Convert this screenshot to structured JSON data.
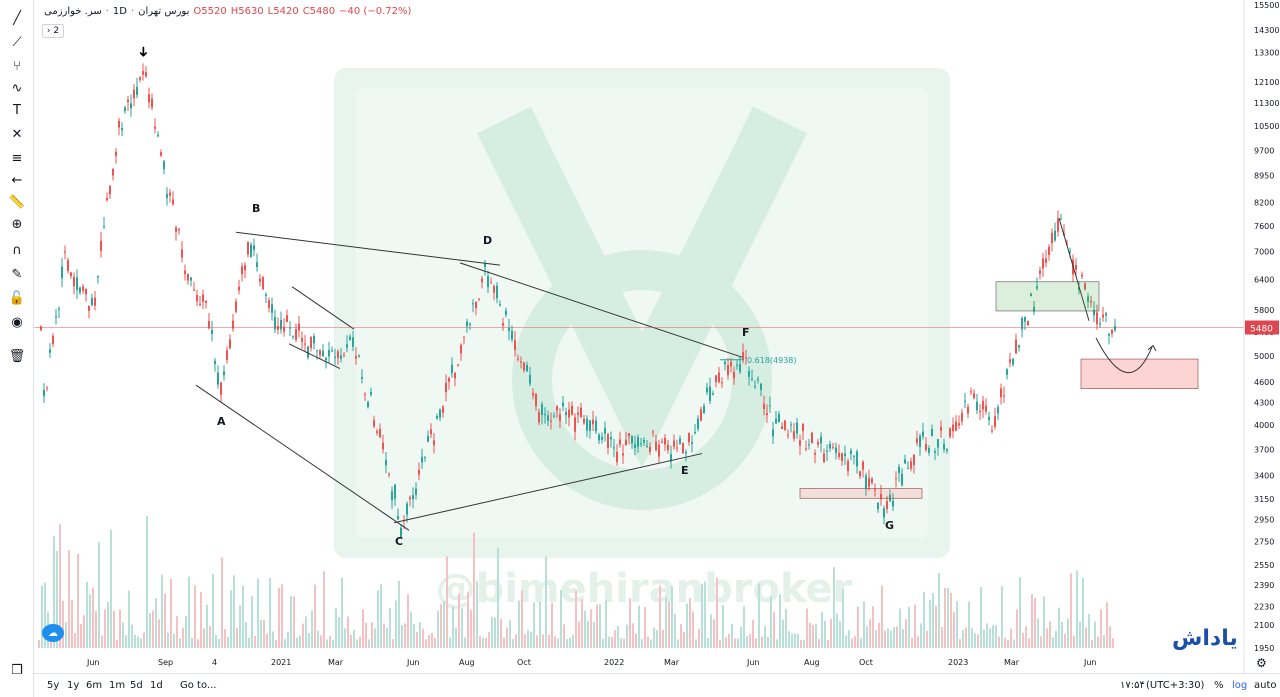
{
  "legend": {
    "symbol": "سر. خوارزمی",
    "interval": "1D",
    "exchange": "بورس تهران",
    "open": "O5520",
    "high": "H5630",
    "low": "L5420",
    "close": "C5480",
    "change": "−40 (−0.72%)",
    "indicator_count": "2"
  },
  "price_tag": "5480",
  "fib_label": "0.618(4938)",
  "watermark": "@bimehiranbroker",
  "logo_text": "یاداش",
  "timezone": "(UTC+3:30)",
  "clock": "۱۷:۵۴",
  "ranges": [
    "5y",
    "1y",
    "6m",
    "1m",
    "5d",
    "1d"
  ],
  "goto": "Go to...",
  "controls": {
    "percent": "%",
    "log": "log",
    "auto": "auto"
  },
  "colors": {
    "up": "#26a69a",
    "down": "#ef5350",
    "price_line": "#e0464f",
    "accent": "#2962ff"
  },
  "toolbar_icons": [
    "cross-line-icon",
    "trend-line-icon",
    "fork-icon",
    "brush-icon",
    "text-icon",
    "pattern-icon",
    "fib-icon",
    "back-arrow-icon",
    "ruler-icon",
    "zoom-icon",
    "magnet-icon",
    "lock-draw-icon",
    "lock-icon",
    "eye-icon",
    "trash-icon",
    "layers-icon"
  ],
  "chart_data": {
    "type": "candlestick",
    "y_axis_ticks": [
      1950,
      2100,
      2230,
      2390,
      2550,
      2750,
      2950,
      3150,
      3400,
      3700,
      4000,
      4300,
      4600,
      5000,
      5400,
      5800,
      6400,
      7000,
      7600,
      8200,
      8950,
      9700,
      10500,
      11300,
      12100,
      13300,
      14300,
      15500
    ],
    "y_scale": "log",
    "x_axis_labels": [
      "Jun",
      "Sep",
      "4",
      "2021",
      "Mar",
      "Jun",
      "Aug",
      "Oct",
      "2022",
      "Mar",
      "Jun",
      "Aug",
      "Oct",
      "2023",
      "Mar",
      "Jun"
    ],
    "last_close": 5480,
    "annotations": [
      "A",
      "B",
      "C",
      "D",
      "E",
      "F",
      "G"
    ],
    "key_points": [
      {
        "label": "peak",
        "x": "Aug 2020",
        "y": 12500
      },
      {
        "label": "A",
        "x": "Dec 2020",
        "y": 4300
      },
      {
        "label": "B",
        "x": "Jan 2021",
        "y": 7200
      },
      {
        "label": "C",
        "x": "Jun 2021",
        "y": 2900
      },
      {
        "label": "D",
        "x": "Aug 2021",
        "y": 6600
      },
      {
        "label": "E",
        "x": "Apr 2022",
        "y": 3700
      },
      {
        "label": "F",
        "x": "Jun 2022",
        "y": 4938
      },
      {
        "label": "G",
        "x": "Oct 2022",
        "y": 3050
      },
      {
        "label": "top",
        "x": "May 2023",
        "y": 7800
      },
      {
        "label": "last",
        "x": "Jul 2023",
        "y": 5480
      }
    ],
    "grid": false,
    "legend_position": "top-left"
  }
}
